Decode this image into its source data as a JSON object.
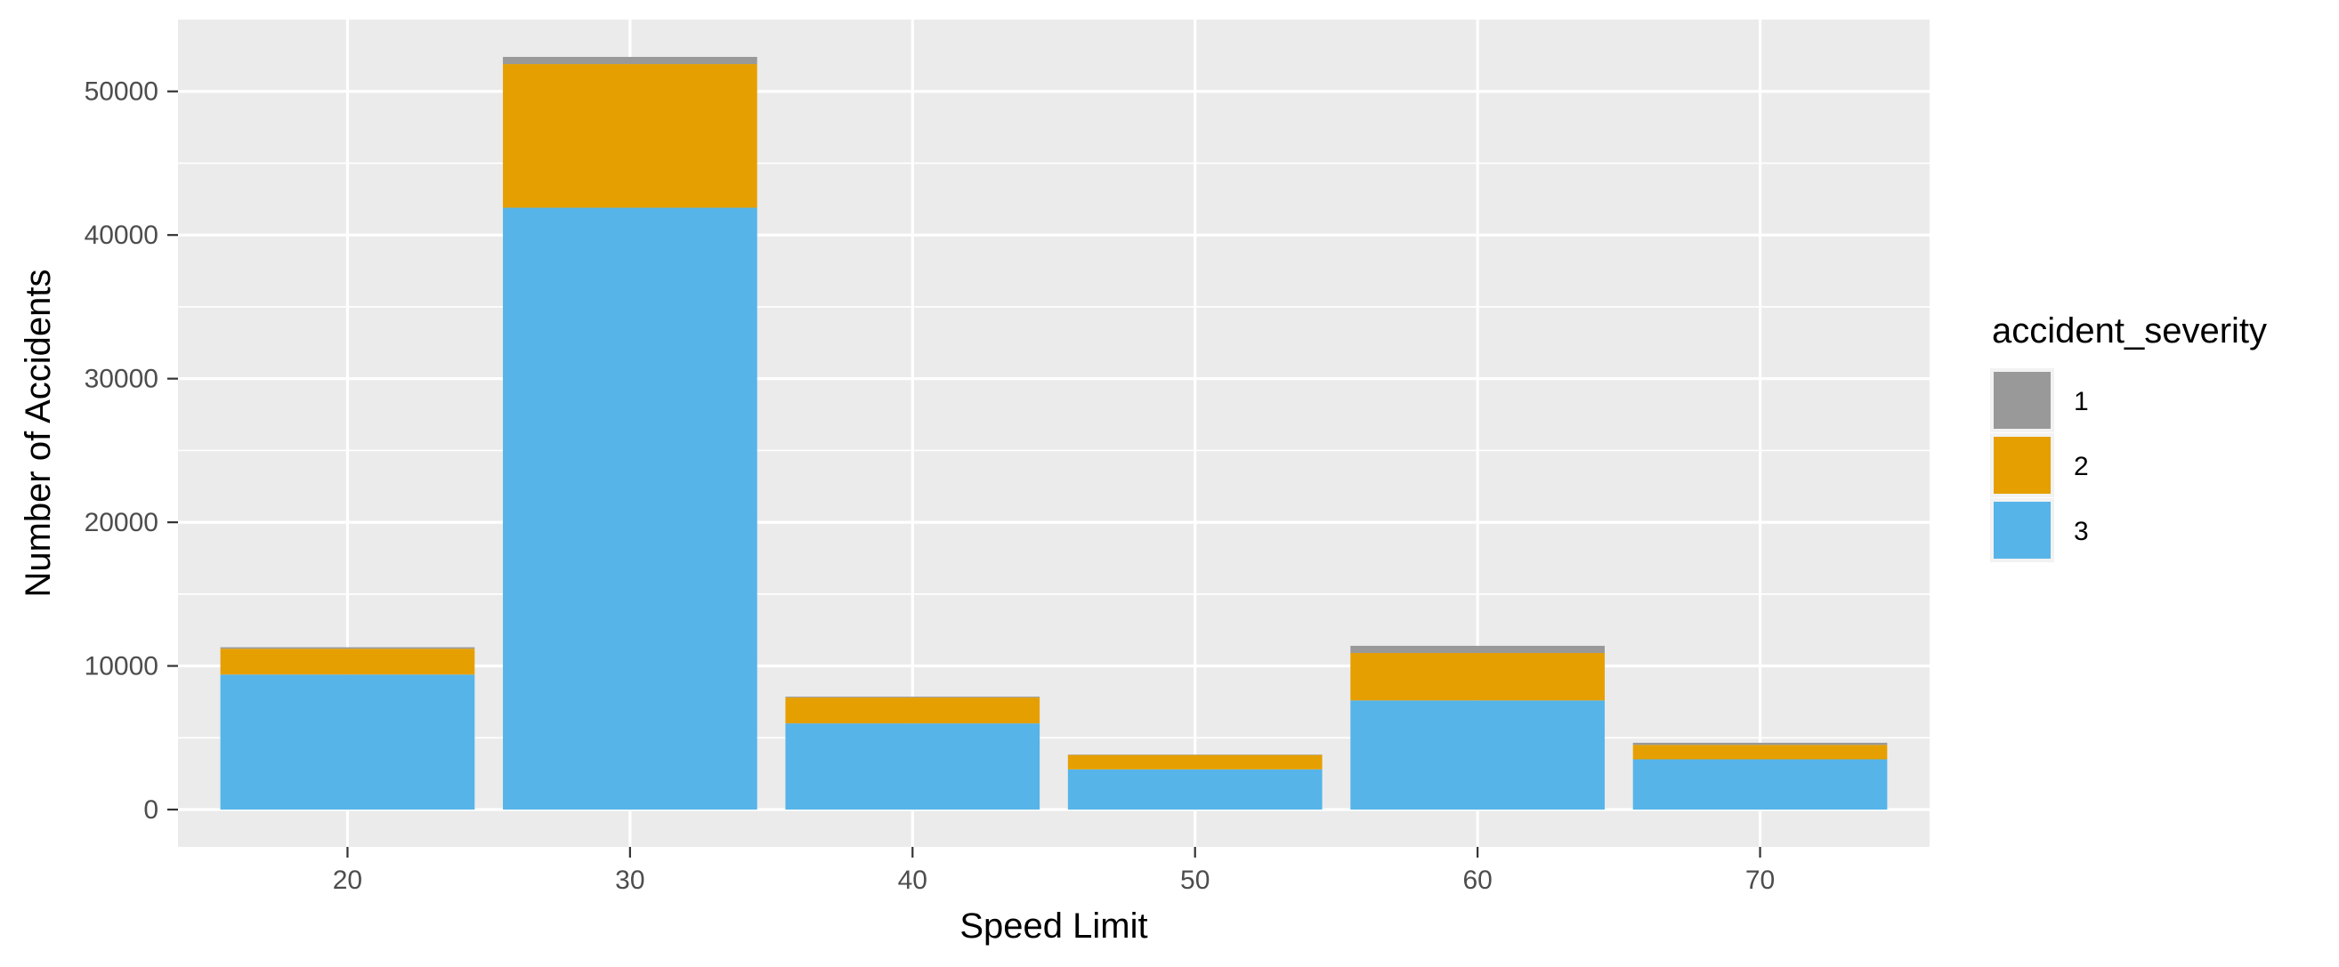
{
  "chart_data": {
    "type": "bar",
    "stacked": true,
    "x": [
      20,
      30,
      40,
      50,
      60,
      70
    ],
    "series": [
      {
        "name": "1",
        "color": "#999999",
        "values": [
          100,
          500,
          60,
          30,
          500,
          150
        ]
      },
      {
        "name": "2",
        "color": "#E69F00",
        "values": [
          1800,
          10000,
          1800,
          1000,
          3300,
          1000
        ]
      },
      {
        "name": "3",
        "color": "#56B4E9",
        "values": [
          9400,
          41900,
          6000,
          2800,
          7600,
          3500
        ]
      }
    ],
    "xlabel": "Speed Limit",
    "ylabel": "Number of Accidents",
    "xticks": [
      "20",
      "30",
      "40",
      "50",
      "60",
      "70"
    ],
    "yticks": [
      0,
      10000,
      20000,
      30000,
      40000,
      50000
    ],
    "ylim": [
      -2600,
      55000
    ],
    "xlim": [
      14,
      76
    ],
    "grid": true,
    "background": "#EBEBEB",
    "legend": {
      "title": "accident_severity",
      "placement": "right",
      "entries": [
        "1",
        "2",
        "3"
      ]
    }
  }
}
